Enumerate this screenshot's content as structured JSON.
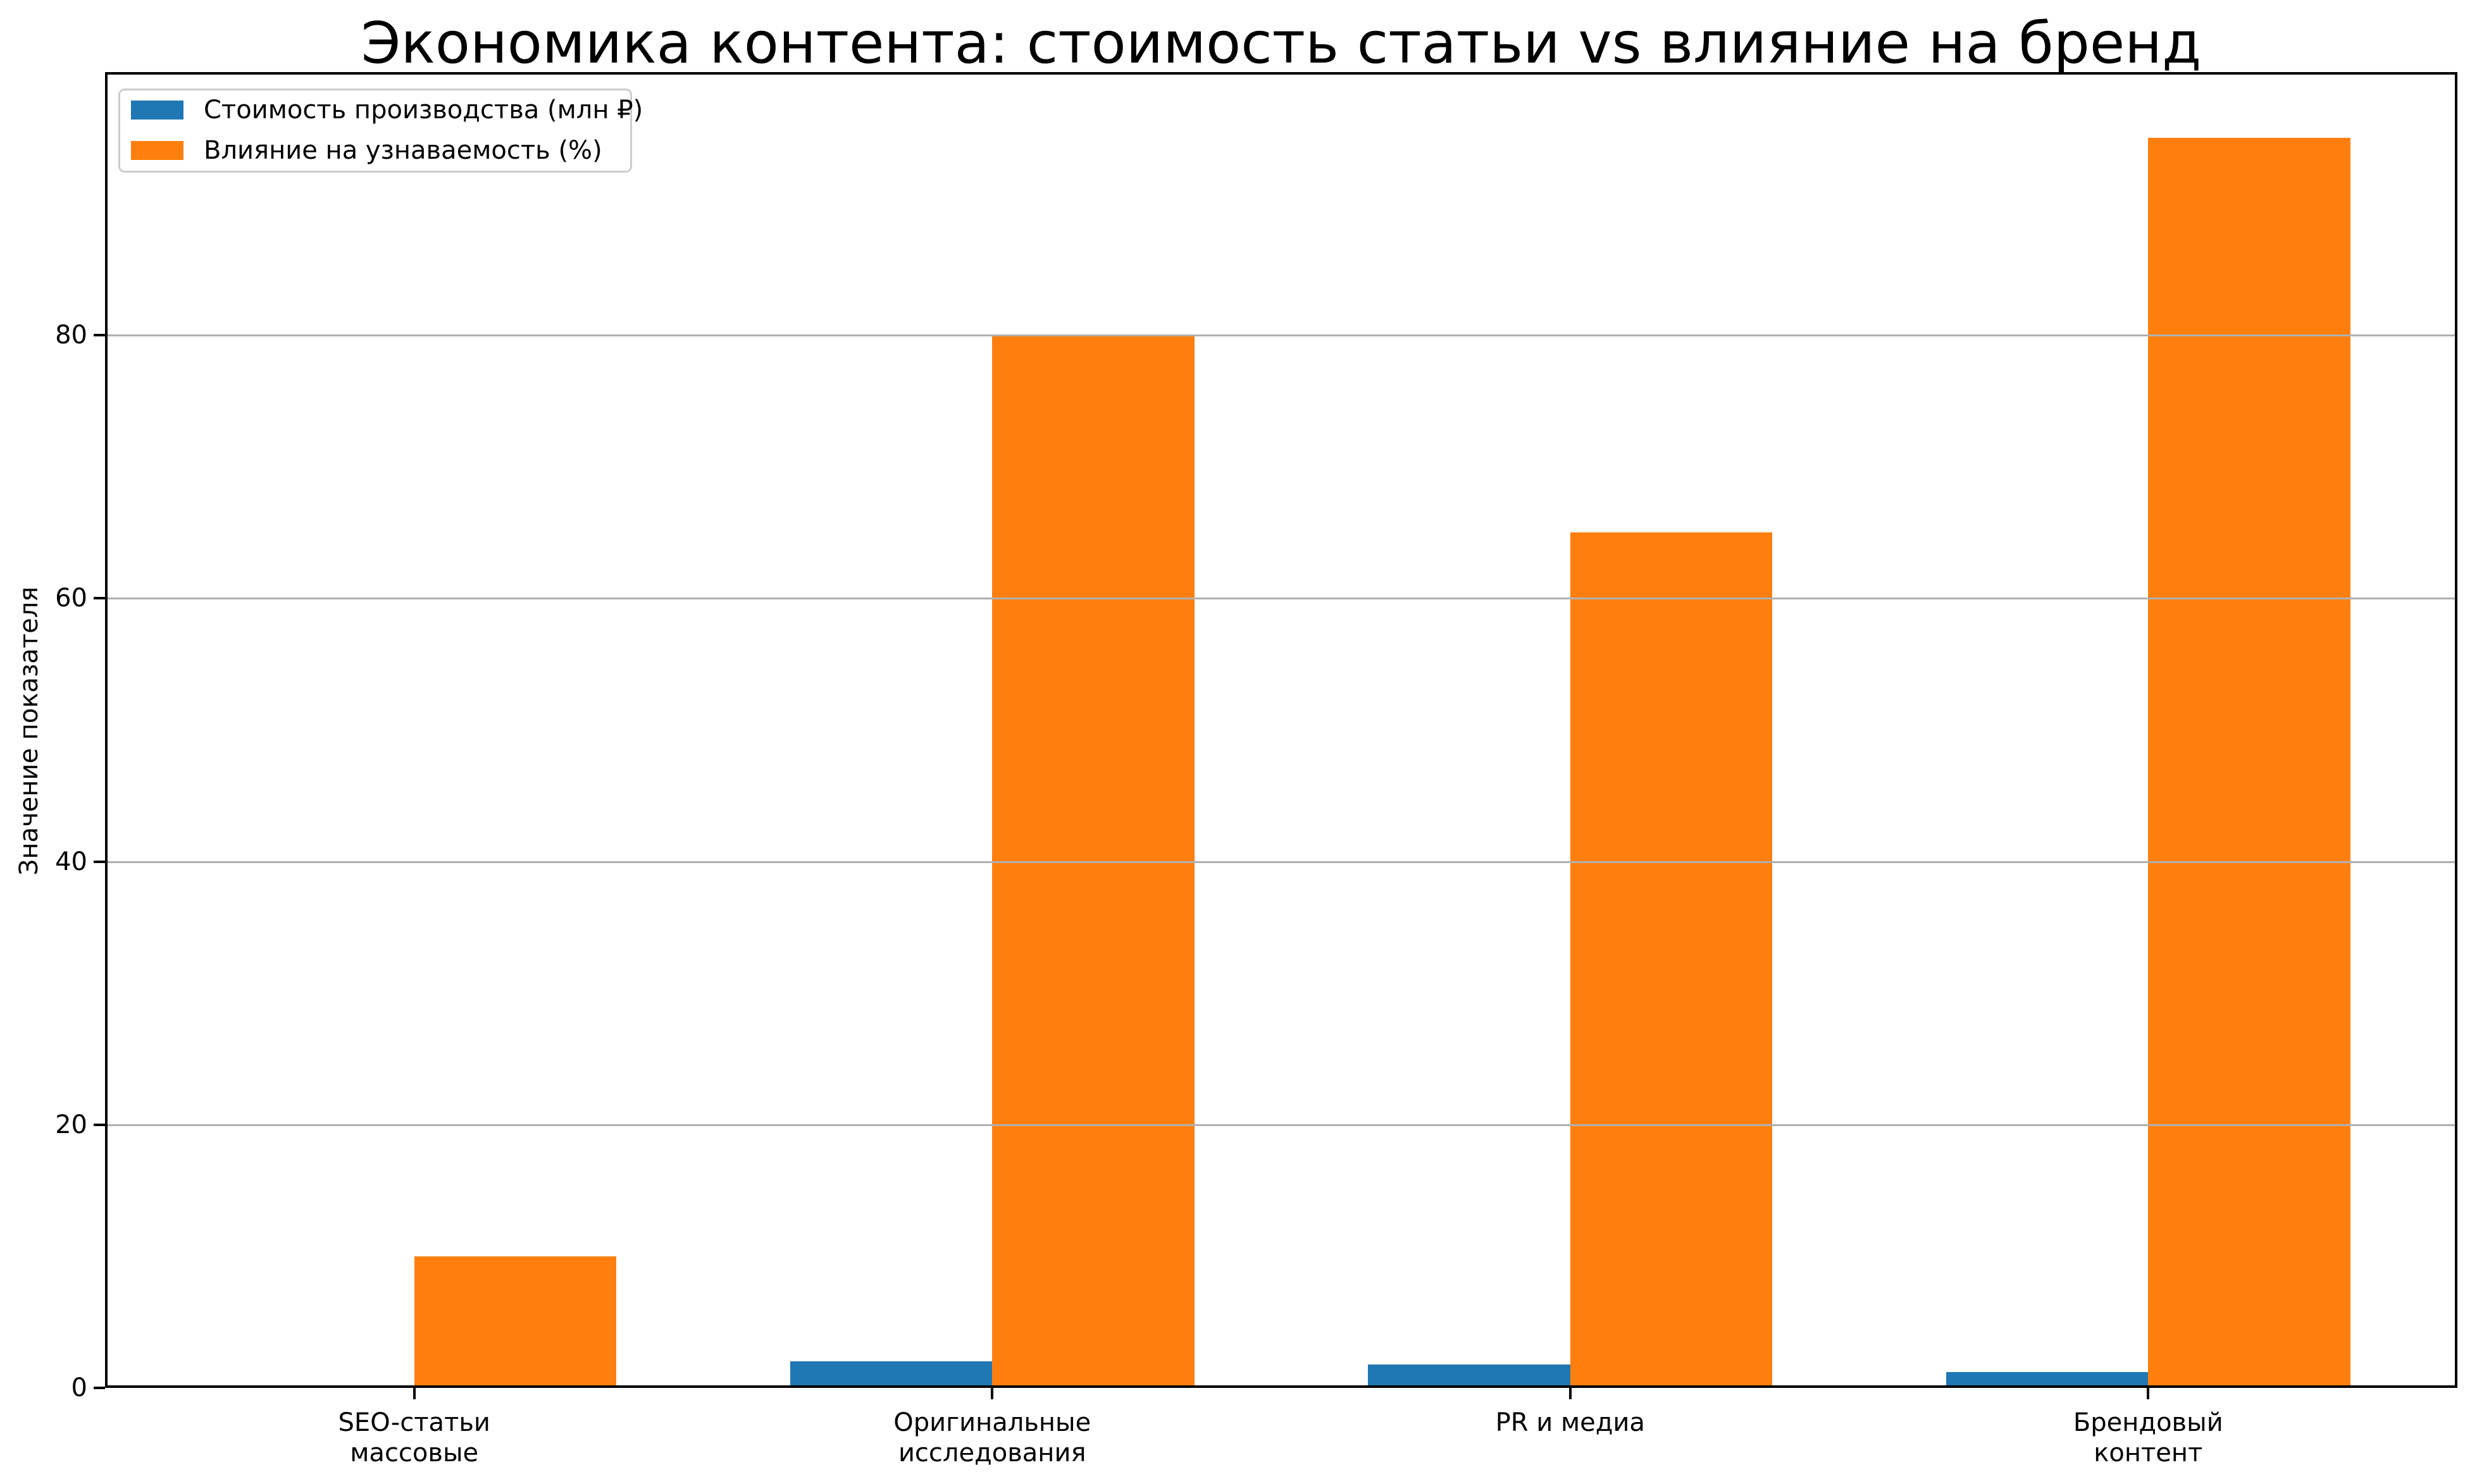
{
  "chart_data": {
    "type": "bar",
    "title": "Экономика контента: стоимость статьи vs влияние на бренд",
    "xlabel": "",
    "ylabel": "Значение показателя",
    "categories": [
      "SEO-статьи\nмассовые",
      "Оригинальные\nисследования",
      "PR и медиа",
      "Брендовый\nконтент"
    ],
    "series": [
      {
        "name": "Стоимость производства (млн ₽)",
        "color": "#1f77b4",
        "values": [
          0.05,
          2,
          1.8,
          1.2
        ]
      },
      {
        "name": "Влияние на узнаваемость (%)",
        "color": "#ff7f0e",
        "values": [
          10,
          80,
          65,
          95
        ]
      }
    ],
    "ylim": [
      0,
      100
    ],
    "yticks": [
      0,
      20,
      40,
      60,
      80
    ],
    "yticklabels": [
      "0",
      "20",
      "40",
      "60",
      "80"
    ],
    "bar_width": 0.35,
    "grid": true,
    "grid_color": "#b0b0b0",
    "grid_over_bars": true,
    "legend_position": "upper left",
    "spine_color": "#000000",
    "background_color": "#ffffff",
    "legend_border_color": "#cccccc"
  }
}
